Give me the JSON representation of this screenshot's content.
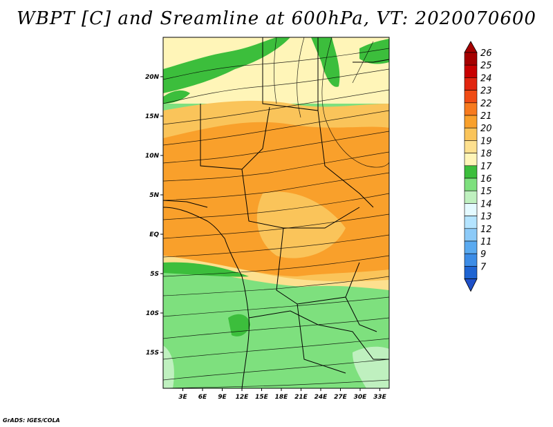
{
  "title": "WBPT [C] and Sreamline at 600hPa, VT: 2020070600",
  "credit": "GrADS: IGES/COLA",
  "map": {
    "variable": "WBPT [C]",
    "level": "600hPa",
    "valid_time": "2020070600",
    "lat_ticks": [
      "20N",
      "15N",
      "10N",
      "5N",
      "EQ",
      "5S",
      "10S",
      "15S"
    ],
    "lon_ticks": [
      "3E",
      "6E",
      "9E",
      "12E",
      "15E",
      "18E",
      "21E",
      "24E",
      "27E",
      "30E",
      "33E"
    ]
  },
  "colorbar": {
    "levels": [
      {
        "label": "26",
        "color": "#a50000"
      },
      {
        "label": "25",
        "color": "#c80000"
      },
      {
        "label": "24",
        "color": "#e1250f"
      },
      {
        "label": "23",
        "color": "#f04b14"
      },
      {
        "label": "22",
        "color": "#f77a1e"
      },
      {
        "label": "21",
        "color": "#f9a02b"
      },
      {
        "label": "20",
        "color": "#fac45a"
      },
      {
        "label": "19",
        "color": "#fde08f"
      },
      {
        "label": "18",
        "color": "#fff5b8"
      },
      {
        "label": "17",
        "color": "#3cbe3c"
      },
      {
        "label": "16",
        "color": "#7ee07e"
      },
      {
        "label": "15",
        "color": "#bff0bf"
      },
      {
        "label": "14",
        "color": "#e4faff"
      },
      {
        "label": "13",
        "color": "#b4e4ff"
      },
      {
        "label": "12",
        "color": "#8ccaf8"
      },
      {
        "label": "11",
        "color": "#5aaaf0"
      },
      {
        "label": "9",
        "color": "#3c8ce6"
      },
      {
        "label": "7",
        "color": "#1e64d2"
      }
    ],
    "below_color": "#1e50c8"
  }
}
